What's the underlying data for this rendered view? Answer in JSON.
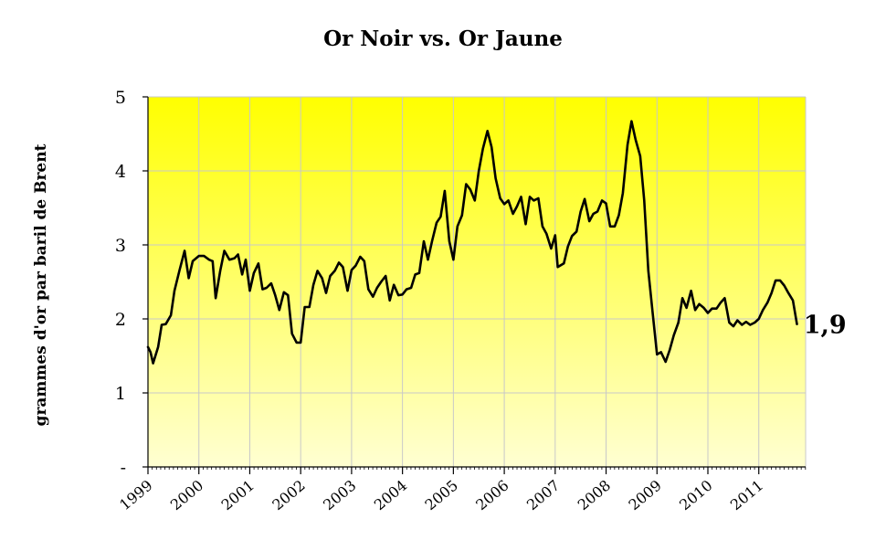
{
  "chart_data": {
    "type": "line",
    "title": "Or Noir vs. Or Jaune",
    "ylabel": "grammes d'or par baril de  Brent",
    "xlabel": "",
    "ylim": [
      0,
      5
    ],
    "xlim": [
      1999.0,
      2011.92
    ],
    "grid": true,
    "y_ticks": [
      {
        "value": 0,
        "label": "-"
      },
      {
        "value": 1,
        "label": "1"
      },
      {
        "value": 2,
        "label": "2"
      },
      {
        "value": 3,
        "label": "3"
      },
      {
        "value": 4,
        "label": "4"
      },
      {
        "value": 5,
        "label": "5"
      }
    ],
    "x_ticks": [
      {
        "value": 1999,
        "label": "1999"
      },
      {
        "value": 2000,
        "label": "2000"
      },
      {
        "value": 2001,
        "label": "2001"
      },
      {
        "value": 2002,
        "label": "2002"
      },
      {
        "value": 2003,
        "label": "2003"
      },
      {
        "value": 2004,
        "label": "2004"
      },
      {
        "value": 2005,
        "label": "2005"
      },
      {
        "value": 2006,
        "label": "2006"
      },
      {
        "value": 2007,
        "label": "2007"
      },
      {
        "value": 2008,
        "label": "2008"
      },
      {
        "value": 2009,
        "label": "2009"
      },
      {
        "value": 2010,
        "label": "2010"
      },
      {
        "value": 2011,
        "label": "2011"
      }
    ],
    "annotation": {
      "text": "1,9",
      "x": 2011.7,
      "y": 1.93
    },
    "colors": {
      "background_top": "#ffff00",
      "background_bottom": "#ffffd2",
      "line": "#000000",
      "grid": "#c8c8c8"
    },
    "series": [
      {
        "points": [
          [
            1999.0,
            1.62
          ],
          [
            1999.05,
            1.55
          ],
          [
            1999.1,
            1.4
          ],
          [
            1999.2,
            1.62
          ],
          [
            1999.27,
            1.92
          ],
          [
            1999.35,
            1.93
          ],
          [
            1999.45,
            2.05
          ],
          [
            1999.52,
            2.38
          ],
          [
            1999.62,
            2.66
          ],
          [
            1999.72,
            2.92
          ],
          [
            1999.8,
            2.55
          ],
          [
            1999.88,
            2.78
          ],
          [
            2000.0,
            2.85
          ],
          [
            2000.1,
            2.85
          ],
          [
            2000.2,
            2.8
          ],
          [
            2000.27,
            2.78
          ],
          [
            2000.33,
            2.28
          ],
          [
            2000.42,
            2.65
          ],
          [
            2000.5,
            2.92
          ],
          [
            2000.6,
            2.8
          ],
          [
            2000.7,
            2.82
          ],
          [
            2000.77,
            2.87
          ],
          [
            2000.85,
            2.6
          ],
          [
            2000.92,
            2.8
          ],
          [
            2001.0,
            2.38
          ],
          [
            2001.08,
            2.62
          ],
          [
            2001.17,
            2.75
          ],
          [
            2001.25,
            2.4
          ],
          [
            2001.33,
            2.42
          ],
          [
            2001.42,
            2.48
          ],
          [
            2001.5,
            2.32
          ],
          [
            2001.58,
            2.12
          ],
          [
            2001.67,
            2.36
          ],
          [
            2001.75,
            2.32
          ],
          [
            2001.83,
            1.8
          ],
          [
            2001.92,
            1.68
          ],
          [
            2002.0,
            1.68
          ],
          [
            2002.08,
            2.16
          ],
          [
            2002.17,
            2.16
          ],
          [
            2002.25,
            2.46
          ],
          [
            2002.33,
            2.65
          ],
          [
            2002.42,
            2.55
          ],
          [
            2002.5,
            2.35
          ],
          [
            2002.58,
            2.58
          ],
          [
            2002.67,
            2.65
          ],
          [
            2002.75,
            2.76
          ],
          [
            2002.83,
            2.7
          ],
          [
            2002.92,
            2.38
          ],
          [
            2003.0,
            2.66
          ],
          [
            2003.08,
            2.72
          ],
          [
            2003.17,
            2.84
          ],
          [
            2003.25,
            2.78
          ],
          [
            2003.33,
            2.4
          ],
          [
            2003.42,
            2.3
          ],
          [
            2003.5,
            2.42
          ],
          [
            2003.58,
            2.5
          ],
          [
            2003.67,
            2.58
          ],
          [
            2003.75,
            2.25
          ],
          [
            2003.83,
            2.46
          ],
          [
            2003.92,
            2.32
          ],
          [
            2004.0,
            2.33
          ],
          [
            2004.08,
            2.4
          ],
          [
            2004.17,
            2.42
          ],
          [
            2004.25,
            2.6
          ],
          [
            2004.33,
            2.62
          ],
          [
            2004.42,
            3.05
          ],
          [
            2004.5,
            2.8
          ],
          [
            2004.58,
            3.05
          ],
          [
            2004.67,
            3.3
          ],
          [
            2004.75,
            3.38
          ],
          [
            2004.83,
            3.73
          ],
          [
            2004.92,
            3.05
          ],
          [
            2005.0,
            2.8
          ],
          [
            2005.08,
            3.25
          ],
          [
            2005.17,
            3.4
          ],
          [
            2005.25,
            3.82
          ],
          [
            2005.33,
            3.75
          ],
          [
            2005.42,
            3.6
          ],
          [
            2005.5,
            4.0
          ],
          [
            2005.58,
            4.3
          ],
          [
            2005.67,
            4.54
          ],
          [
            2005.75,
            4.32
          ],
          [
            2005.83,
            3.9
          ],
          [
            2005.92,
            3.63
          ],
          [
            2006.0,
            3.55
          ],
          [
            2006.08,
            3.6
          ],
          [
            2006.17,
            3.42
          ],
          [
            2006.25,
            3.52
          ],
          [
            2006.33,
            3.65
          ],
          [
            2006.42,
            3.28
          ],
          [
            2006.5,
            3.65
          ],
          [
            2006.58,
            3.6
          ],
          [
            2006.67,
            3.63
          ],
          [
            2006.75,
            3.25
          ],
          [
            2006.83,
            3.15
          ],
          [
            2006.92,
            2.95
          ],
          [
            2007.0,
            3.13
          ],
          [
            2007.05,
            2.7
          ],
          [
            2007.17,
            2.75
          ],
          [
            2007.25,
            2.98
          ],
          [
            2007.33,
            3.12
          ],
          [
            2007.42,
            3.18
          ],
          [
            2007.5,
            3.45
          ],
          [
            2007.58,
            3.62
          ],
          [
            2007.67,
            3.32
          ],
          [
            2007.75,
            3.42
          ],
          [
            2007.83,
            3.45
          ],
          [
            2007.92,
            3.6
          ],
          [
            2008.0,
            3.56
          ],
          [
            2008.08,
            3.25
          ],
          [
            2008.17,
            3.25
          ],
          [
            2008.25,
            3.4
          ],
          [
            2008.33,
            3.7
          ],
          [
            2008.42,
            4.35
          ],
          [
            2008.5,
            4.67
          ],
          [
            2008.58,
            4.42
          ],
          [
            2008.67,
            4.2
          ],
          [
            2008.75,
            3.6
          ],
          [
            2008.83,
            2.65
          ],
          [
            2008.92,
            2.05
          ],
          [
            2009.0,
            1.52
          ],
          [
            2009.08,
            1.55
          ],
          [
            2009.17,
            1.42
          ],
          [
            2009.25,
            1.58
          ],
          [
            2009.33,
            1.78
          ],
          [
            2009.42,
            1.95
          ],
          [
            2009.5,
            2.28
          ],
          [
            2009.58,
            2.15
          ],
          [
            2009.67,
            2.38
          ],
          [
            2009.75,
            2.12
          ],
          [
            2009.83,
            2.2
          ],
          [
            2009.92,
            2.15
          ],
          [
            2010.0,
            2.08
          ],
          [
            2010.08,
            2.14
          ],
          [
            2010.17,
            2.14
          ],
          [
            2010.25,
            2.22
          ],
          [
            2010.33,
            2.28
          ],
          [
            2010.42,
            1.95
          ],
          [
            2010.5,
            1.9
          ],
          [
            2010.58,
            1.98
          ],
          [
            2010.67,
            1.92
          ],
          [
            2010.75,
            1.96
          ],
          [
            2010.83,
            1.92
          ],
          [
            2010.92,
            1.95
          ],
          [
            2011.0,
            2.0
          ],
          [
            2011.08,
            2.12
          ],
          [
            2011.17,
            2.22
          ],
          [
            2011.25,
            2.35
          ],
          [
            2011.33,
            2.52
          ],
          [
            2011.42,
            2.52
          ],
          [
            2011.5,
            2.45
          ],
          [
            2011.58,
            2.35
          ],
          [
            2011.67,
            2.25
          ],
          [
            2011.75,
            1.93
          ]
        ]
      }
    ]
  }
}
